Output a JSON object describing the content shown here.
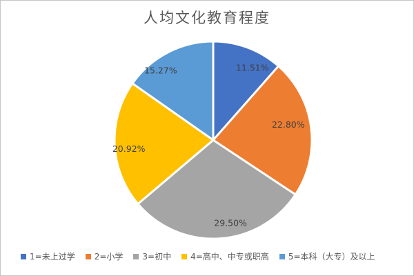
{
  "chart_data": {
    "type": "pie",
    "title": "人均文化教育程度",
    "legend_position": "bottom",
    "start_angle_deg": 0,
    "direction": "clockwise",
    "values_format": "percent",
    "slices": [
      {
        "label": "1=未上过学",
        "value": 11.51,
        "display": "11.51%",
        "color": "#4472C4"
      },
      {
        "label": "2=小学",
        "value": 22.8,
        "display": "22.80%",
        "color": "#ED7D31"
      },
      {
        "label": "3=初中",
        "value": 29.5,
        "display": "29.50%",
        "color": "#A5A5A5"
      },
      {
        "label": "4=高中、中专或职高",
        "value": 20.92,
        "display": "20.92%",
        "color": "#FFC000"
      },
      {
        "label": "5=本科（大专）及以上",
        "value": 15.27,
        "display": "15.27%",
        "color": "#5B9BD5"
      }
    ],
    "colors": {
      "title_text": "#595959",
      "data_label_text": "#404040",
      "legend_text": "#595959",
      "slice_separator": "#FFFFFF",
      "frame_border": "#C6C6C6",
      "background": "#FFFFFF"
    }
  }
}
